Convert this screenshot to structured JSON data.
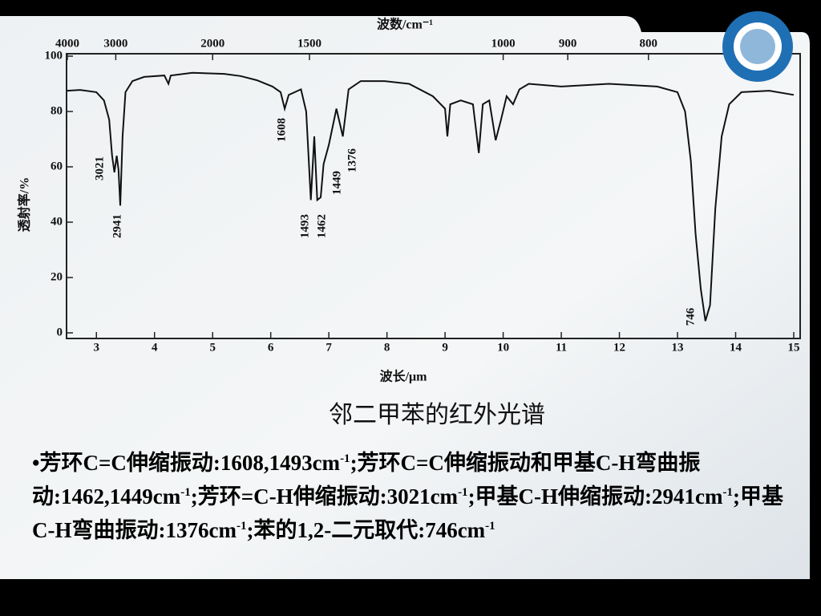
{
  "chart_data": {
    "type": "line",
    "x_label": "波长/μm",
    "x2_label": "波数/cm⁻¹",
    "y_label": "透射率/%",
    "xlim": [
      2.5,
      15
    ],
    "ylim": [
      0,
      100
    ],
    "xticks": [
      3,
      4,
      5,
      6,
      7,
      8,
      9,
      10,
      11,
      12,
      13,
      14,
      15
    ],
    "x2ticks": [
      4000,
      3000,
      2000,
      1500,
      1000,
      900,
      800
    ],
    "yticks": [
      0,
      20,
      40,
      60,
      80,
      100
    ],
    "grid": false,
    "color": "#111111",
    "x": [
      2.5,
      2.72,
      3.0,
      3.13,
      3.22,
      3.27,
      3.31,
      3.35,
      3.38,
      3.41,
      3.45,
      3.5,
      3.62,
      3.82,
      4.17,
      4.24,
      4.28,
      4.65,
      5.2,
      5.48,
      5.76,
      6.03,
      6.17,
      6.24,
      6.31,
      6.52,
      6.61,
      6.69,
      6.75,
      6.8,
      6.86,
      6.91,
      7.0,
      7.13,
      7.24,
      7.34,
      7.55,
      7.96,
      8.38,
      8.79,
      9.0,
      9.04,
      9.09,
      9.27,
      9.48,
      9.58,
      9.65,
      9.76,
      9.87,
      9.96,
      10.06,
      10.17,
      10.28,
      10.44,
      11.0,
      11.82,
      12.65,
      13.0,
      13.13,
      13.23,
      13.31,
      13.4,
      13.48,
      13.56,
      13.65,
      13.76,
      13.89,
      14.1,
      14.58,
      15.0
    ],
    "values": [
      87.5,
      87.8,
      87,
      84,
      77,
      64,
      58,
      64,
      59,
      46,
      71,
      87,
      91,
      92.5,
      93,
      90,
      93,
      94,
      93.6,
      92.8,
      91.3,
      89,
      87,
      81,
      86,
      88,
      80,
      48,
      71,
      48,
      49,
      61,
      68,
      81,
      71,
      88,
      91,
      91,
      90,
      85.5,
      81,
      71,
      82.6,
      84,
      82.6,
      65,
      82.6,
      84,
      69.6,
      76.8,
      85.5,
      82.6,
      88,
      90,
      89,
      90,
      89,
      87,
      80,
      62,
      36,
      16,
      4.3,
      10,
      45,
      71,
      82.6,
      87,
      87.5,
      86
    ],
    "annotations": [
      "3021",
      "2941",
      "1608",
      "1493",
      "1462",
      "1449",
      "1376",
      "746"
    ]
  },
  "caption": "邻二甲苯的红外光谱",
  "description": [
    "•芳环C=C伸缩振动:1608,1493cm",
    "-1",
    ";芳环C=C伸缩振动和甲基C-H弯曲振动:1462,1449cm",
    "-1",
    ";芳环=C-H伸缩振动:3021cm",
    "-1",
    ";甲基C-H伸缩振动:2941cm",
    "-1",
    ";甲基C-H弯曲振动:1376cm",
    "-1",
    ";苯的1,2-二元取代:746cm",
    "-1"
  ]
}
